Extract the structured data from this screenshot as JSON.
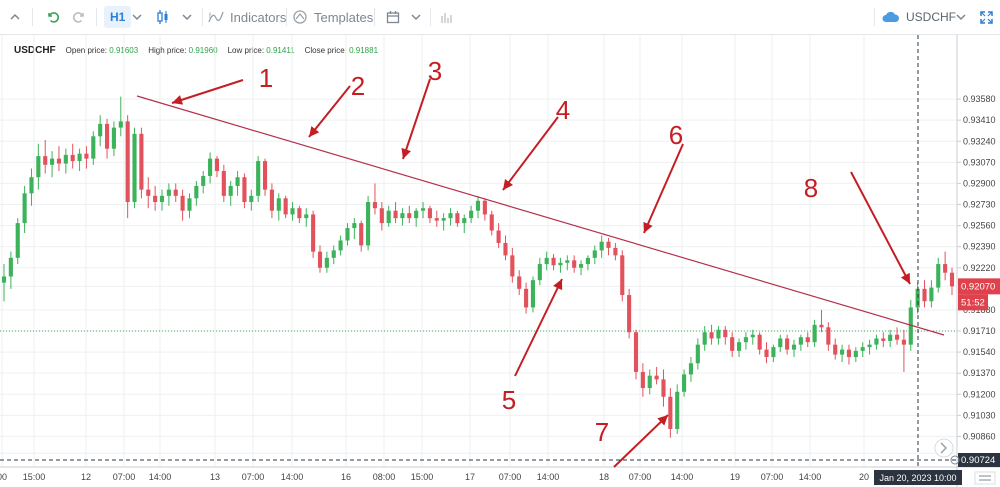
{
  "toolbar": {
    "timeframe": "H1",
    "indicators_label": "Indicators",
    "templates_label": "Templates",
    "symbol": "USDCHF"
  },
  "legend": {
    "symbol": "USDCHF",
    "open_label": "Open price:",
    "open": "0.91603",
    "high_label": "High price:",
    "high": "0.91960",
    "low_label": "Low price:",
    "low": "0.91411",
    "close_label": "Close price:",
    "close": "0.91881"
  },
  "colors": {
    "up": "#3cb25a",
    "down": "#e2525d",
    "trendline": "#b5304a",
    "arrow": "#c41e24",
    "price_badge": "#e0424d",
    "time_badge": "#2b3440"
  },
  "chart_data": {
    "type": "candlestick",
    "yaxis_ticks": [
      "0.93580",
      "0.93410",
      "0.93240",
      "0.93070",
      "0.92900",
      "0.92730",
      "0.92560",
      "0.92390",
      "0.92220",
      "0.92070",
      "0.91880",
      "0.91710",
      "0.91540",
      "0.91370",
      "0.91200",
      "0.91030",
      "0.90860",
      "0.90724"
    ],
    "ylim": [
      0.9067,
      0.9375
    ],
    "xaxis_ticks": [
      "00",
      "15:00",
      "12",
      "07:00",
      "14:00",
      "13",
      "07:00",
      "14:00",
      "16",
      "08:00",
      "15:00",
      "17",
      "07:00",
      "14:00",
      "18",
      "07:00",
      "14:00",
      "19",
      "07:00",
      "14:00",
      "20"
    ],
    "current_price": "0.92070",
    "countdown": "51:52",
    "crosshair_price": "0.90724",
    "crosshair_time": "Jan 20, 2023 10:00",
    "horizontal_level": 0.9171,
    "trendline": {
      "from": [
        1,
        0.9343
      ],
      "to": [
        16,
        0.9167
      ]
    },
    "annotations": [
      "1",
      "2",
      "3",
      "4",
      "5",
      "6",
      "7",
      "8"
    ],
    "candles": [
      [
        0.921,
        0.9225,
        0.9195,
        0.9215
      ],
      [
        0.9215,
        0.9235,
        0.9205,
        0.923
      ],
      [
        0.923,
        0.9262,
        0.9225,
        0.9258
      ],
      [
        0.9258,
        0.9288,
        0.925,
        0.9282
      ],
      [
        0.9282,
        0.9302,
        0.9272,
        0.9295
      ],
      [
        0.9295,
        0.9322,
        0.9285,
        0.9312
      ],
      [
        0.9312,
        0.9325,
        0.9298,
        0.9305
      ],
      [
        0.9305,
        0.9316,
        0.9295,
        0.931
      ],
      [
        0.931,
        0.932,
        0.93,
        0.9306
      ],
      [
        0.9306,
        0.9318,
        0.9298,
        0.9313
      ],
      [
        0.9313,
        0.9322,
        0.9302,
        0.9308
      ],
      [
        0.9308,
        0.9318,
        0.93,
        0.9314
      ],
      [
        0.9314,
        0.932,
        0.9302,
        0.931
      ],
      [
        0.931,
        0.9332,
        0.9305,
        0.9328
      ],
      [
        0.9328,
        0.9345,
        0.932,
        0.9338
      ],
      [
        0.9338,
        0.9342,
        0.931,
        0.9318
      ],
      [
        0.9318,
        0.934,
        0.9312,
        0.9335
      ],
      [
        0.9335,
        0.936,
        0.9328,
        0.934
      ],
      [
        0.934,
        0.9345,
        0.9262,
        0.9275
      ],
      [
        0.9275,
        0.9335,
        0.927,
        0.933
      ],
      [
        0.933,
        0.9335,
        0.9278,
        0.9285
      ],
      [
        0.9285,
        0.9295,
        0.927,
        0.928
      ],
      [
        0.928,
        0.9288,
        0.9268,
        0.9275
      ],
      [
        0.9275,
        0.9285,
        0.9268,
        0.928
      ],
      [
        0.928,
        0.929,
        0.9272,
        0.9285
      ],
      [
        0.9285,
        0.929,
        0.9275,
        0.928
      ],
      [
        0.928,
        0.9285,
        0.926,
        0.9268
      ],
      [
        0.9268,
        0.9282,
        0.9262,
        0.9278
      ],
      [
        0.9278,
        0.9292,
        0.9272,
        0.9288
      ],
      [
        0.9288,
        0.93,
        0.9282,
        0.9296
      ],
      [
        0.9296,
        0.9315,
        0.929,
        0.931
      ],
      [
        0.931,
        0.9312,
        0.9295,
        0.93
      ],
      [
        0.93,
        0.9305,
        0.9275,
        0.928
      ],
      [
        0.928,
        0.9292,
        0.9272,
        0.9288
      ],
      [
        0.9288,
        0.93,
        0.928,
        0.9295
      ],
      [
        0.9295,
        0.9298,
        0.927,
        0.9275
      ],
      [
        0.9275,
        0.9285,
        0.9268,
        0.928
      ],
      [
        0.928,
        0.9312,
        0.9275,
        0.9308
      ],
      [
        0.9308,
        0.931,
        0.928,
        0.9285
      ],
      [
        0.9285,
        0.929,
        0.9262,
        0.9268
      ],
      [
        0.9268,
        0.9282,
        0.926,
        0.9278
      ],
      [
        0.9278,
        0.928,
        0.9262,
        0.9265
      ],
      [
        0.9265,
        0.9275,
        0.926,
        0.927
      ],
      [
        0.927,
        0.9272,
        0.9258,
        0.9262
      ],
      [
        0.9262,
        0.927,
        0.9255,
        0.9265
      ],
      [
        0.9265,
        0.9268,
        0.923,
        0.9235
      ],
      [
        0.9235,
        0.924,
        0.9218,
        0.9222
      ],
      [
        0.9222,
        0.9235,
        0.9218,
        0.923
      ],
      [
        0.923,
        0.924,
        0.9225,
        0.9236
      ],
      [
        0.9236,
        0.9248,
        0.9232,
        0.9244
      ],
      [
        0.9244,
        0.9258,
        0.924,
        0.9254
      ],
      [
        0.9254,
        0.9262,
        0.9245,
        0.9258
      ],
      [
        0.9258,
        0.926,
        0.9235,
        0.924
      ],
      [
        0.924,
        0.928,
        0.9236,
        0.9275
      ],
      [
        0.9275,
        0.929,
        0.9265,
        0.927
      ],
      [
        0.927,
        0.9275,
        0.9252,
        0.9258
      ],
      [
        0.9258,
        0.9272,
        0.9255,
        0.9268
      ],
      [
        0.9268,
        0.9275,
        0.9258,
        0.9262
      ],
      [
        0.9262,
        0.927,
        0.9256,
        0.9266
      ],
      [
        0.9266,
        0.9272,
        0.9258,
        0.9262
      ],
      [
        0.9262,
        0.927,
        0.9255,
        0.9268
      ],
      [
        0.9268,
        0.9275,
        0.9262,
        0.927
      ],
      [
        0.927,
        0.9272,
        0.9258,
        0.9262
      ],
      [
        0.9262,
        0.9268,
        0.9255,
        0.926
      ],
      [
        0.926,
        0.9266,
        0.9252,
        0.9262
      ],
      [
        0.9262,
        0.927,
        0.9256,
        0.9266
      ],
      [
        0.9266,
        0.9268,
        0.9255,
        0.9258
      ],
      [
        0.9258,
        0.9265,
        0.925,
        0.9262
      ],
      [
        0.9262,
        0.9272,
        0.9258,
        0.9268
      ],
      [
        0.9268,
        0.928,
        0.9262,
        0.9276
      ],
      [
        0.9276,
        0.9278,
        0.926,
        0.9265
      ],
      [
        0.9265,
        0.9268,
        0.9248,
        0.9252
      ],
      [
        0.9252,
        0.9258,
        0.9238,
        0.9242
      ],
      [
        0.9242,
        0.9248,
        0.9228,
        0.9232
      ],
      [
        0.9232,
        0.9238,
        0.921,
        0.9215
      ],
      [
        0.9215,
        0.922,
        0.92,
        0.9205
      ],
      [
        0.9205,
        0.921,
        0.9185,
        0.919
      ],
      [
        0.919,
        0.9215,
        0.9186,
        0.9212
      ],
      [
        0.9212,
        0.923,
        0.9208,
        0.9225
      ],
      [
        0.9225,
        0.9235,
        0.922,
        0.923
      ],
      [
        0.923,
        0.9233,
        0.922,
        0.9224
      ],
      [
        0.9224,
        0.923,
        0.9218,
        0.9226
      ],
      [
        0.9226,
        0.9232,
        0.922,
        0.9228
      ],
      [
        0.9228,
        0.9232,
        0.9218,
        0.9222
      ],
      [
        0.9222,
        0.9228,
        0.9216,
        0.9225
      ],
      [
        0.9225,
        0.9232,
        0.922,
        0.923
      ],
      [
        0.923,
        0.924,
        0.9225,
        0.9236
      ],
      [
        0.9236,
        0.9248,
        0.923,
        0.9243
      ],
      [
        0.9243,
        0.9246,
        0.9232,
        0.9238
      ],
      [
        0.9238,
        0.9242,
        0.9228,
        0.9232
      ],
      [
        0.9232,
        0.9236,
        0.9195,
        0.92
      ],
      [
        0.92,
        0.9205,
        0.9165,
        0.917
      ],
      [
        0.917,
        0.9172,
        0.9132,
        0.9138
      ],
      [
        0.9138,
        0.9145,
        0.9118,
        0.9125
      ],
      [
        0.9125,
        0.914,
        0.912,
        0.9135
      ],
      [
        0.9135,
        0.9142,
        0.9128,
        0.9132
      ],
      [
        0.9132,
        0.914,
        0.911,
        0.9118
      ],
      [
        0.9118,
        0.9125,
        0.9085,
        0.9092
      ],
      [
        0.9092,
        0.9128,
        0.9088,
        0.9122
      ],
      [
        0.9122,
        0.914,
        0.9118,
        0.9136
      ],
      [
        0.9136,
        0.915,
        0.913,
        0.9145
      ],
      [
        0.9145,
        0.9165,
        0.914,
        0.916
      ],
      [
        0.916,
        0.9175,
        0.9155,
        0.917
      ],
      [
        0.917,
        0.9176,
        0.916,
        0.9165
      ],
      [
        0.9165,
        0.9175,
        0.916,
        0.9172
      ],
      [
        0.9172,
        0.9175,
        0.916,
        0.9166
      ],
      [
        0.9166,
        0.917,
        0.915,
        0.9155
      ],
      [
        0.9155,
        0.9165,
        0.915,
        0.9162
      ],
      [
        0.9162,
        0.917,
        0.9156,
        0.9166
      ],
      [
        0.9166,
        0.9172,
        0.916,
        0.9168
      ],
      [
        0.9168,
        0.917,
        0.9152,
        0.9156
      ],
      [
        0.9156,
        0.9162,
        0.9145,
        0.915
      ],
      [
        0.915,
        0.916,
        0.9146,
        0.9158
      ],
      [
        0.9158,
        0.9168,
        0.9154,
        0.9165
      ],
      [
        0.9165,
        0.9168,
        0.9152,
        0.9156
      ],
      [
        0.9156,
        0.9164,
        0.915,
        0.916
      ],
      [
        0.916,
        0.9168,
        0.9155,
        0.9166
      ],
      [
        0.9166,
        0.917,
        0.9158,
        0.9162
      ],
      [
        0.9162,
        0.918,
        0.9158,
        0.9176
      ],
      [
        0.9176,
        0.9188,
        0.917,
        0.9174
      ],
      [
        0.9174,
        0.9178,
        0.9155,
        0.916
      ],
      [
        0.916,
        0.9165,
        0.9148,
        0.9152
      ],
      [
        0.9152,
        0.916,
        0.9146,
        0.9156
      ],
      [
        0.9156,
        0.916,
        0.9144,
        0.915
      ],
      [
        0.915,
        0.9158,
        0.9146,
        0.9155
      ],
      [
        0.9155,
        0.9162,
        0.915,
        0.9158
      ],
      [
        0.9158,
        0.9164,
        0.9152,
        0.916
      ],
      [
        0.916,
        0.9168,
        0.9156,
        0.9165
      ],
      [
        0.9165,
        0.917,
        0.9158,
        0.9163
      ],
      [
        0.9163,
        0.9172,
        0.9158,
        0.9168
      ],
      [
        0.9168,
        0.9174,
        0.916,
        0.9164
      ],
      [
        0.9164,
        0.9172,
        0.9138,
        0.916
      ],
      [
        0.916,
        0.9196,
        0.9155,
        0.919
      ],
      [
        0.919,
        0.921,
        0.9185,
        0.9205
      ],
      [
        0.9205,
        0.9212,
        0.919,
        0.9195
      ],
      [
        0.9195,
        0.9212,
        0.919,
        0.9206
      ],
      [
        0.9206,
        0.923,
        0.9202,
        0.9225
      ],
      [
        0.9225,
        0.9235,
        0.9212,
        0.9218
      ],
      [
        0.9218,
        0.9222,
        0.92,
        0.9207
      ]
    ]
  }
}
